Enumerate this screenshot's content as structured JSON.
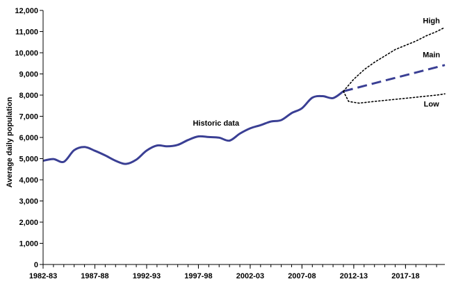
{
  "chart_data": {
    "type": "line",
    "title": "",
    "xlabel": "",
    "ylabel": "Average daily population",
    "ylim": [
      0,
      12000
    ],
    "yticks": [
      0,
      1000,
      2000,
      3000,
      4000,
      5000,
      6000,
      7000,
      8000,
      9000,
      10000,
      11000,
      12000
    ],
    "ytick_labels": [
      "0",
      "1,000",
      "2,000",
      "3,000",
      "4,000",
      "5,000",
      "6,000",
      "7,000",
      "8,000",
      "9,000",
      "10,000",
      "11,000",
      "12,000"
    ],
    "xlim": [
      1982,
      2020.8
    ],
    "xticks": [
      1982,
      1987,
      1992,
      1997,
      2002,
      2007,
      2012,
      2017
    ],
    "xtick_labels": [
      "1982-83",
      "1987-88",
      "1992-93",
      "1997-98",
      "2002-03",
      "2007-08",
      "2012-13",
      "2017-18"
    ],
    "grid": false,
    "series": [
      {
        "name": "Historic data",
        "style": "solid",
        "color": "#3a3f94",
        "x": [
          1982,
          1983,
          1984,
          1985,
          1986,
          1987,
          1988,
          1989,
          1990,
          1991,
          1992,
          1993,
          1994,
          1995,
          1996,
          1997,
          1998,
          1999,
          2000,
          2001,
          2002,
          2003,
          2004,
          2005,
          2006,
          2007,
          2008,
          2009,
          2010,
          2011
        ],
        "values": [
          4900,
          4980,
          4850,
          5400,
          5550,
          5370,
          5150,
          4900,
          4750,
          4950,
          5380,
          5620,
          5580,
          5650,
          5880,
          6050,
          6020,
          5990,
          5850,
          6180,
          6430,
          6580,
          6750,
          6820,
          7150,
          7380,
          7880,
          7950,
          7860,
          8180
        ]
      },
      {
        "name": "Main",
        "style": "dashed",
        "color": "#3a3f94",
        "x": [
          2011,
          2020.8
        ],
        "values": [
          8180,
          9420
        ]
      },
      {
        "name": "High",
        "style": "dotted",
        "color": "#000000",
        "x": [
          2011,
          2012,
          2013,
          2014,
          2015,
          2016,
          2017,
          2018,
          2019,
          2020,
          2020.8
        ],
        "values": [
          8180,
          8750,
          9200,
          9550,
          9850,
          10150,
          10350,
          10550,
          10800,
          11000,
          11200
        ]
      },
      {
        "name": "Low",
        "style": "dotted",
        "color": "#000000",
        "x": [
          2011,
          2011.5,
          2012.5,
          2014,
          2015,
          2016,
          2017,
          2018,
          2019,
          2020,
          2020.8
        ],
        "values": [
          8180,
          7700,
          7620,
          7700,
          7750,
          7800,
          7850,
          7900,
          7950,
          8000,
          8060
        ]
      }
    ],
    "annotations": [
      {
        "text": "Historic data",
        "x": 1998.7,
        "y": 6550
      },
      {
        "text": "High",
        "x": 2019.5,
        "y": 11400
      },
      {
        "text": "Main",
        "x": 2019.5,
        "y": 9780
      },
      {
        "text": "Low",
        "x": 2019.5,
        "y": 7460
      }
    ]
  }
}
